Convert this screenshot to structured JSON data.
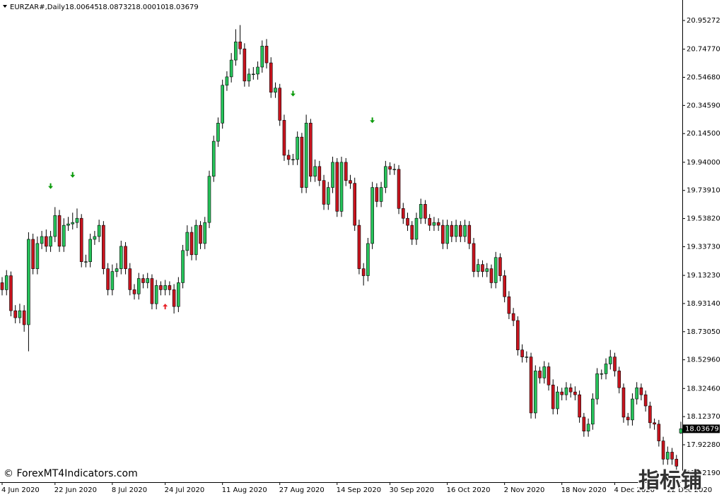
{
  "chart_data": {
    "type": "candlestick",
    "header": {
      "symbol": "EURZAR#,Daily",
      "ohlc": [
        "18.00645",
        "18.08732",
        "18.00010",
        "18.03679"
      ]
    },
    "watermark": "© ForexMT4Indicators.com",
    "watermark_cn": "指标铺",
    "up_color": "#26c35a",
    "down_color": "#c8141e",
    "wick_color": "#000000",
    "categories": [
      "4 Jun 2020",
      null,
      null,
      null,
      null,
      null,
      null,
      null,
      null,
      null,
      null,
      null,
      "22 Jun 2020",
      null,
      null,
      null,
      null,
      null,
      null,
      null,
      null,
      null,
      null,
      null,
      null,
      "8 Jul 2020",
      null,
      null,
      null,
      null,
      null,
      null,
      null,
      null,
      null,
      null,
      null,
      "24 Jul 2020",
      null,
      null,
      null,
      null,
      null,
      null,
      null,
      null,
      null,
      null,
      null,
      null,
      "11 Aug 2020",
      null,
      null,
      null,
      null,
      null,
      null,
      null,
      null,
      null,
      null,
      null,
      null,
      "27 Aug 2020",
      null,
      null,
      null,
      null,
      null,
      null,
      null,
      null,
      null,
      null,
      null,
      null,
      "14 Sep 2020",
      null,
      null,
      null,
      null,
      null,
      null,
      null,
      null,
      null,
      null,
      null,
      "30 Sep 2020",
      null,
      null,
      null,
      null,
      null,
      null,
      null,
      null,
      null,
      null,
      null,
      null,
      "16 Oct 2020",
      null,
      null,
      null,
      null,
      null,
      null,
      null,
      null,
      null,
      null,
      null,
      null,
      "2 Nov 2020",
      null,
      null,
      null,
      null,
      null,
      null,
      null,
      null,
      null,
      null,
      null,
      null,
      "18 Nov 2020",
      null,
      null,
      null,
      null,
      null,
      null,
      null,
      null,
      null,
      null,
      null,
      "4 Dec 2020",
      null,
      null,
      null,
      null,
      null,
      null,
      null,
      null,
      null,
      null,
      null,
      "22 Dec 2020",
      null,
      null,
      null
    ],
    "open": [
      19.08,
      19.03,
      19.13,
      18.88,
      18.83,
      18.88,
      18.78,
      19.39,
      19.18,
      19.36,
      19.41,
      19.34,
      19.41,
      19.56,
      19.34,
      19.49,
      19.5,
      19.51,
      19.54,
      19.23,
      19.23,
      19.39,
      19.41,
      19.49,
      19.18,
      19.03,
      19.16,
      19.18,
      19.34,
      19.18,
      19.03,
      19.0,
      19.11,
      19.08,
      19.11,
      18.93,
      19.06,
      19.03,
      19.06,
      19.03,
      18.91,
      19.08,
      19.31,
      19.44,
      19.28,
      19.49,
      19.36,
      19.51,
      19.84,
      20.09,
      20.22,
      20.49,
      20.55,
      20.67,
      20.8,
      20.75,
      20.52,
      20.57,
      20.57,
      20.62,
      20.77,
      20.65,
      20.44,
      20.47,
      20.24,
      19.99,
      19.96,
      19.96,
      20.12,
      19.76,
      20.22,
      19.84,
      19.91,
      19.81,
      19.64,
      19.76,
      19.94,
      19.59,
      19.94,
      19.81,
      19.79,
      19.49,
      19.18,
      19.13,
      19.36,
      19.76,
      19.66,
      19.76,
      19.91,
      19.89,
      19.89,
      19.61,
      19.54,
      19.49,
      19.39,
      19.54,
      19.64,
      19.54,
      19.49,
      19.51,
      19.49,
      19.36,
      19.49,
      19.41,
      19.49,
      19.41,
      19.49,
      19.36,
      19.16,
      19.21,
      19.16,
      19.18,
      19.08,
      19.26,
      19.13,
      18.98,
      18.86,
      18.81,
      18.6,
      18.55,
      18.55,
      18.15,
      18.45,
      18.4,
      18.48,
      18.35,
      18.18,
      18.3,
      18.28,
      18.33,
      18.3,
      18.28,
      18.12,
      18.02,
      18.07,
      18.25,
      18.43,
      18.43,
      18.5,
      18.55,
      18.45,
      18.33,
      18.12,
      18.1,
      18.25,
      18.33,
      18.28,
      18.2,
      18.08,
      18.07,
      17.95,
      17.82,
      17.87,
      17.82,
      18.00645
    ],
    "high": [
      19.12,
      19.17,
      19.16,
      18.92,
      18.93,
      18.92,
      19.44,
      19.43,
      19.41,
      19.45,
      19.46,
      19.45,
      19.62,
      19.6,
      19.54,
      19.55,
      19.58,
      19.61,
      19.57,
      19.28,
      19.43,
      19.45,
      19.53,
      19.52,
      19.22,
      19.21,
      19.22,
      19.38,
      19.37,
      19.22,
      19.07,
      19.15,
      19.14,
      19.15,
      19.14,
      19.1,
      19.09,
      19.1,
      19.09,
      19.07,
      19.12,
      19.35,
      19.49,
      19.48,
      19.53,
      19.52,
      19.55,
      19.88,
      20.13,
      20.26,
      20.53,
      20.59,
      20.72,
      20.89,
      20.92,
      20.79,
      20.61,
      20.62,
      20.66,
      20.81,
      20.82,
      20.69,
      20.51,
      20.5,
      20.28,
      20.03,
      20.0,
      20.16,
      20.15,
      20.28,
      20.25,
      19.96,
      19.95,
      19.85,
      19.8,
      19.98,
      19.97,
      19.98,
      19.97,
      19.85,
      19.83,
      19.53,
      19.22,
      19.4,
      19.8,
      19.79,
      19.8,
      19.95,
      19.94,
      19.93,
      19.92,
      19.65,
      19.58,
      19.52,
      19.58,
      19.68,
      19.67,
      19.57,
      19.55,
      19.54,
      19.53,
      19.53,
      19.52,
      19.53,
      19.52,
      19.53,
      19.52,
      19.4,
      19.25,
      19.24,
      19.22,
      19.21,
      19.3,
      19.29,
      19.17,
      19.02,
      18.9,
      18.84,
      18.64,
      18.59,
      18.58,
      18.49,
      18.48,
      18.52,
      18.51,
      18.39,
      18.34,
      18.33,
      18.37,
      18.36,
      18.34,
      18.31,
      18.15,
      18.11,
      18.29,
      18.47,
      18.46,
      18.54,
      18.6,
      18.58,
      18.48,
      18.36,
      18.15,
      18.29,
      18.37,
      18.36,
      18.31,
      18.23,
      18.11,
      18.1,
      17.98,
      17.91,
      17.9,
      17.85,
      18.08732
    ],
    "low": [
      18.99,
      18.99,
      18.84,
      18.79,
      18.79,
      18.73,
      18.59,
      19.14,
      19.14,
      19.32,
      19.3,
      19.3,
      19.37,
      19.3,
      19.3,
      19.45,
      19.46,
      19.47,
      19.19,
      19.19,
      19.19,
      19.35,
      19.37,
      19.14,
      18.99,
      18.99,
      19.12,
      19.14,
      19.14,
      18.99,
      18.96,
      18.96,
      19.04,
      19.04,
      18.89,
      18.89,
      18.99,
      18.99,
      18.99,
      18.86,
      18.87,
      19.04,
      19.27,
      19.24,
      19.24,
      19.32,
      19.32,
      19.47,
      19.8,
      20.05,
      20.18,
      20.45,
      20.51,
      20.63,
      20.71,
      20.48,
      20.48,
      20.53,
      20.53,
      20.58,
      20.61,
      20.4,
      20.4,
      20.2,
      19.95,
      19.92,
      19.92,
      19.92,
      19.72,
      19.72,
      19.8,
      19.8,
      19.77,
      19.6,
      19.6,
      19.72,
      19.55,
      19.55,
      19.77,
      19.75,
      19.45,
      19.14,
      19.06,
      19.09,
      19.32,
      19.62,
      19.62,
      19.72,
      19.85,
      19.85,
      19.57,
      19.5,
      19.45,
      19.35,
      19.35,
      19.5,
      19.5,
      19.45,
      19.45,
      19.45,
      19.32,
      19.32,
      19.37,
      19.37,
      19.37,
      19.37,
      19.32,
      19.12,
      19.12,
      19.12,
      19.12,
      19.04,
      19.04,
      19.09,
      18.94,
      18.82,
      18.77,
      18.56,
      18.51,
      18.51,
      18.11,
      18.11,
      18.36,
      18.36,
      18.31,
      18.14,
      18.14,
      18.24,
      18.24,
      18.26,
      18.24,
      18.08,
      17.98,
      17.98,
      18.03,
      18.21,
      18.39,
      18.39,
      18.46,
      18.41,
      18.29,
      18.08,
      18.06,
      18.06,
      18.21,
      18.24,
      18.16,
      18.04,
      18.03,
      17.91,
      17.78,
      17.78,
      17.78,
      17.73,
      18.0001
    ],
    "close": [
      19.03,
      19.13,
      18.88,
      18.83,
      18.88,
      18.78,
      19.39,
      19.18,
      19.36,
      19.41,
      19.34,
      19.41,
      19.56,
      19.34,
      19.49,
      19.5,
      19.51,
      19.54,
      19.23,
      19.23,
      19.39,
      19.41,
      19.49,
      19.18,
      19.03,
      19.16,
      19.18,
      19.34,
      19.18,
      19.03,
      19.0,
      19.11,
      19.08,
      19.11,
      18.93,
      19.06,
      19.03,
      19.06,
      19.03,
      18.91,
      19.08,
      19.31,
      19.44,
      19.28,
      19.49,
      19.36,
      19.51,
      19.84,
      20.09,
      20.22,
      20.49,
      20.55,
      20.67,
      20.8,
      20.75,
      20.52,
      20.57,
      20.57,
      20.62,
      20.77,
      20.65,
      20.44,
      20.47,
      20.24,
      19.99,
      19.96,
      19.96,
      20.12,
      19.76,
      20.22,
      19.84,
      19.91,
      19.81,
      19.64,
      19.76,
      19.94,
      19.59,
      19.94,
      19.81,
      19.79,
      19.49,
      19.18,
      19.13,
      19.36,
      19.76,
      19.66,
      19.76,
      19.91,
      19.89,
      19.89,
      19.61,
      19.54,
      19.49,
      19.39,
      19.54,
      19.64,
      19.54,
      19.49,
      19.51,
      19.49,
      19.36,
      19.49,
      19.41,
      19.49,
      19.41,
      19.49,
      19.36,
      19.16,
      19.21,
      19.16,
      19.18,
      19.08,
      19.26,
      19.13,
      18.98,
      18.86,
      18.81,
      18.6,
      18.55,
      18.55,
      18.15,
      18.45,
      18.4,
      18.48,
      18.35,
      18.18,
      18.3,
      18.28,
      18.33,
      18.3,
      18.28,
      18.12,
      18.02,
      18.07,
      18.25,
      18.43,
      18.43,
      18.5,
      18.55,
      18.45,
      18.33,
      18.12,
      18.1,
      18.25,
      18.33,
      18.28,
      18.2,
      18.08,
      18.07,
      17.95,
      17.82,
      17.87,
      17.82,
      17.77,
      18.03679
    ],
    "signals": [
      {
        "index": 11,
        "price": 19.77,
        "direction": "down",
        "color": "#0a9a0a"
      },
      {
        "index": 16,
        "price": 19.85,
        "direction": "down",
        "color": "#0a9a0a"
      },
      {
        "index": 37,
        "price": 18.91,
        "direction": "up",
        "color": "#e8242a"
      },
      {
        "index": 66,
        "price": 20.43,
        "direction": "down",
        "color": "#0a9a0a"
      },
      {
        "index": 84,
        "price": 20.24,
        "direction": "down",
        "color": "#0a9a0a"
      }
    ],
    "ylim": [
      17.6556,
      21.0989
    ],
    "yticks": [
      20.95272,
      {
        "value": 20.7477,
        "label": "20.74770"
      },
      {
        "value": 20.5468,
        "label": "20.54680"
      },
      {
        "value": 20.3459,
        "label": "20.34590"
      },
      {
        "value": 20.145,
        "label": "20.14500"
      },
      {
        "value": 19.94,
        "label": "19.94000"
      },
      {
        "value": 19.7391,
        "label": "19.73910"
      },
      {
        "value": 19.5382,
        "label": "19.53820"
      },
      {
        "value": 19.3373,
        "label": "19.33730"
      },
      {
        "value": 19.1323,
        "label": "19.13230"
      },
      {
        "value": 18.9314,
        "label": "18.93140"
      },
      {
        "value": 18.7305,
        "label": "18.73050"
      },
      {
        "value": 18.5296,
        "label": "18.52960"
      },
      {
        "value": 18.3246,
        "label": "18.32460"
      },
      {
        "value": 18.1237,
        "label": "18.12370"
      },
      {
        "value": 17.9228,
        "label": "17.92280"
      },
      {
        "value": 17.7219,
        "label": "17.72190"
      }
    ],
    "grid": false
  }
}
